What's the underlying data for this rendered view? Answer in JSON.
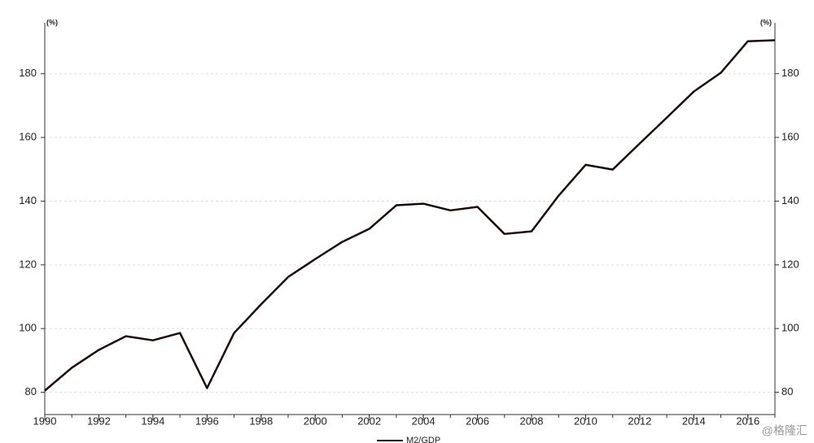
{
  "chart_data": {
    "type": "line",
    "y_unit": "(%)",
    "y2_unit": "(%)",
    "x": [
      1990,
      1991,
      1992,
      1993,
      1994,
      1995,
      1996,
      1997,
      1998,
      1999,
      2000,
      2001,
      2002,
      2003,
      2004,
      2005,
      2006,
      2007,
      2008,
      2009,
      2010,
      2011,
      2012,
      2013,
      2014,
      2015,
      2016,
      2017
    ],
    "series": [
      {
        "name": "M2/GDP",
        "color": "#1a0a0a",
        "values": [
          80.5,
          87.7,
          93.3,
          97.6,
          96.3,
          98.6,
          81.3,
          98.6,
          107.6,
          116.2,
          121.8,
          127.2,
          131.3,
          138.7,
          139.2,
          137.1,
          138.2,
          129.7,
          130.5,
          141.7,
          151.4,
          149.9,
          158.1,
          166.2,
          174.4,
          180.3,
          190.2,
          190.5
        ]
      }
    ],
    "xlim": [
      1990,
      2017
    ],
    "xticks": [
      1990,
      1992,
      1994,
      1996,
      1998,
      2000,
      2002,
      2004,
      2006,
      2008,
      2010,
      2012,
      2014,
      2016
    ],
    "ylim": [
      73,
      196
    ],
    "yticks": [
      80,
      100,
      120,
      140,
      160,
      180
    ],
    "y2lim": [
      73,
      196
    ],
    "y2ticks": [
      80,
      100,
      120,
      140,
      160,
      180
    ],
    "grid": true,
    "legend": "bottom",
    "watermark": "@格隆汇"
  }
}
